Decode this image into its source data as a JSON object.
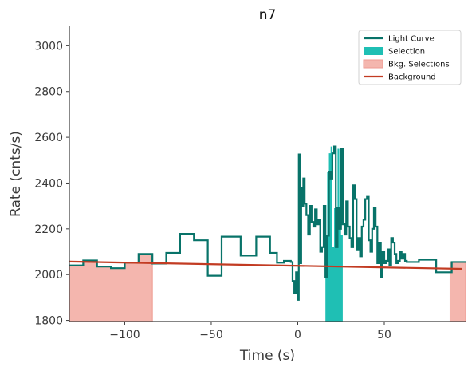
{
  "chart_data": {
    "type": "line",
    "title": "n7",
    "xlabel": "Time (s)",
    "ylabel": "Rate (cnts/s)",
    "xlim": [
      -132,
      97
    ],
    "ylim": [
      1795,
      3085
    ],
    "xticks": [
      -100,
      -50,
      0,
      50
    ],
    "xtick_labels": [
      "−100",
      "−50",
      "0",
      "50"
    ],
    "yticks": [
      1800,
      2000,
      2200,
      2400,
      2600,
      2800,
      3000
    ],
    "ytick_labels": [
      "1800",
      "2000",
      "2200",
      "2400",
      "2600",
      "2800",
      "3000"
    ],
    "grid": false,
    "legend_position": "top-right",
    "legend": [
      {
        "label": "Light Curve",
        "kind": "line"
      },
      {
        "label": "Selection",
        "kind": "patch"
      },
      {
        "label": "Bkg. Selections",
        "kind": "patch"
      },
      {
        "label": "Background",
        "kind": "line"
      }
    ],
    "colors": {
      "light_curve": "#087369",
      "selection": "#1fbfb4",
      "bkg_fill": "#f4b6ae",
      "bkg_edge": "#ee9a91",
      "background": "#c23b22"
    },
    "light_curve": [
      [
        -132,
        2040
      ],
      [
        -124,
        2062
      ],
      [
        -116,
        2035
      ],
      [
        -108,
        2028
      ],
      [
        -100,
        2052
      ],
      [
        -92,
        2090
      ],
      [
        -84,
        2048
      ],
      [
        -76,
        2095
      ],
      [
        -68,
        2178
      ],
      [
        -60,
        2150
      ],
      [
        -52,
        1995
      ],
      [
        -44,
        2166
      ],
      [
        -36,
        2166
      ],
      [
        -33,
        2083
      ],
      [
        -24,
        2166
      ],
      [
        -16,
        2095
      ],
      [
        -12,
        2052
      ],
      [
        -8,
        2060
      ],
      [
        -4,
        2055
      ],
      [
        -3,
        1972
      ],
      [
        -2,
        1920
      ],
      [
        -1,
        2010
      ],
      [
        0,
        1890
      ],
      [
        0.6,
        2525
      ],
      [
        1.2,
        2050
      ],
      [
        2,
        2380
      ],
      [
        2.6,
        2300
      ],
      [
        3.2,
        2420
      ],
      [
        4,
        2310
      ],
      [
        5,
        2260
      ],
      [
        6,
        2175
      ],
      [
        7,
        2300
      ],
      [
        8,
        2230
      ],
      [
        9,
        2210
      ],
      [
        10,
        2285
      ],
      [
        11,
        2220
      ],
      [
        12,
        2240
      ],
      [
        13,
        2100
      ],
      [
        14,
        2120
      ],
      [
        15,
        2300
      ],
      [
        16,
        1990
      ],
      [
        17,
        2170
      ],
      [
        18,
        2450
      ],
      [
        19,
        2420
      ],
      [
        20,
        2530
      ],
      [
        21,
        2560
      ],
      [
        22,
        2120
      ],
      [
        23,
        2290
      ],
      [
        24,
        2200
      ],
      [
        25,
        2550
      ],
      [
        26,
        2220
      ],
      [
        27,
        2175
      ],
      [
        28,
        2320
      ],
      [
        29,
        2210
      ],
      [
        30,
        2160
      ],
      [
        31,
        2120
      ],
      [
        32,
        2390
      ],
      [
        33,
        2330
      ],
      [
        34,
        2110
      ],
      [
        35,
        2160
      ],
      [
        36,
        2080
      ],
      [
        37,
        2210
      ],
      [
        38,
        2240
      ],
      [
        39,
        2330
      ],
      [
        40,
        2340
      ],
      [
        41,
        2150
      ],
      [
        42,
        2100
      ],
      [
        43,
        2200
      ],
      [
        44,
        2290
      ],
      [
        45,
        2210
      ],
      [
        46,
        2050
      ],
      [
        47,
        2140
      ],
      [
        48,
        1990
      ],
      [
        49,
        2100
      ],
      [
        50,
        2050
      ],
      [
        51,
        2060
      ],
      [
        52,
        2110
      ],
      [
        53,
        2040
      ],
      [
        54,
        2160
      ],
      [
        55,
        2140
      ],
      [
        56,
        2090
      ],
      [
        57,
        2050
      ],
      [
        58,
        2060
      ],
      [
        59,
        2100
      ],
      [
        60,
        2070
      ],
      [
        61,
        2090
      ],
      [
        62,
        2060
      ],
      [
        63,
        2055
      ],
      [
        70,
        2065
      ],
      [
        80,
        2010
      ],
      [
        89,
        2055
      ],
      [
        97,
        2055
      ]
    ],
    "selection": {
      "start": 16,
      "end": 26,
      "values": [
        2000,
        2450,
        2530,
        2560,
        2120,
        2290,
        2200,
        2550,
        2220,
        2175
      ]
    },
    "bkg_selections": [
      {
        "start": -132,
        "end": -84,
        "values": [
          2040,
          2062,
          2035,
          2028,
          2052,
          2090
        ]
      },
      {
        "start": 88,
        "end": 97,
        "values": [
          2055
        ]
      }
    ],
    "background": {
      "x": [
        -132,
        95
      ],
      "y": [
        2057,
        2025
      ]
    }
  }
}
